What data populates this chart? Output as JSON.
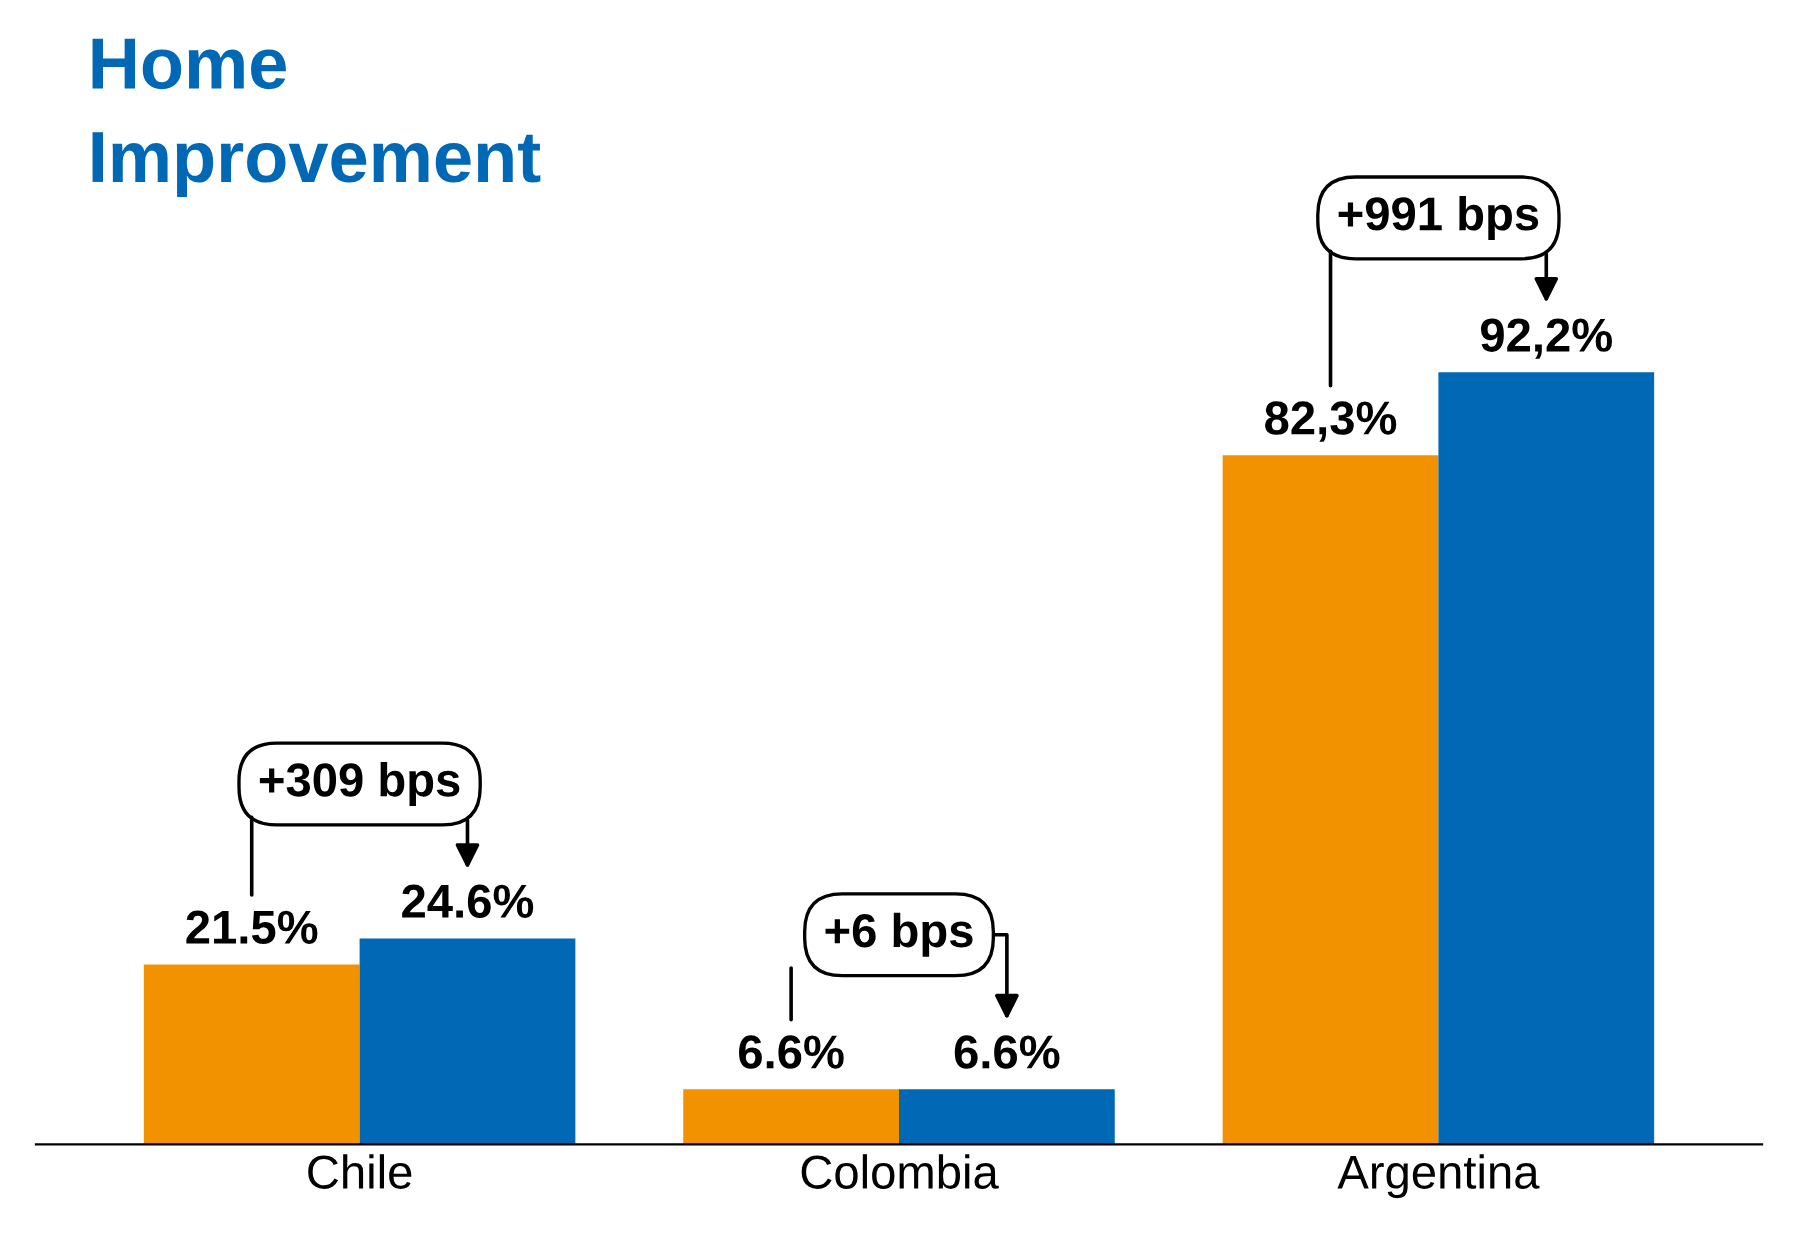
{
  "chart_data": {
    "type": "bar",
    "title": "Home\nImprovement",
    "categories": [
      "Chile",
      "Colombia",
      "Argentina"
    ],
    "series": [
      {
        "color": "#f39200",
        "values": [
          21.5,
          6.6,
          82.3
        ],
        "value_labels": [
          "21.5%",
          "6.6%",
          "82,3%"
        ]
      },
      {
        "color": "#0068b4",
        "values": [
          24.6,
          6.6,
          92.2
        ],
        "value_labels": [
          "24.6%",
          "6.6%",
          "92,2%"
        ]
      }
    ],
    "annotations": [
      {
        "text": "+309 bps",
        "x": "Chile",
        "y": 24.6
      },
      {
        "text": "+6 bps",
        "x": "Colombia",
        "y": 6.6
      },
      {
        "text": "+991 bps",
        "x": "Argentina",
        "y": 92.2
      }
    ],
    "tick_labels": "x",
    "grid": false,
    "legend": false
  }
}
